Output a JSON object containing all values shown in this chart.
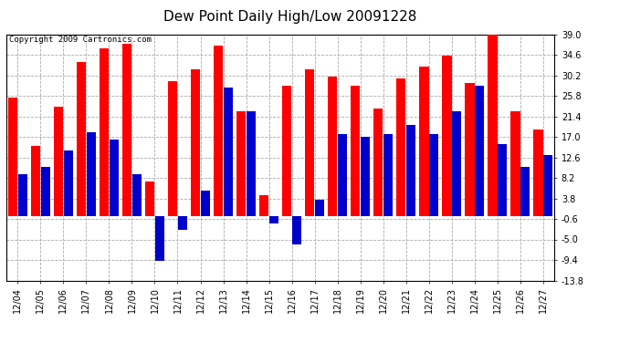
{
  "title": "Dew Point Daily High/Low 20091228",
  "copyright": "Copyright 2009 Cartronics.com",
  "dates": [
    "12/04",
    "12/05",
    "12/06",
    "12/07",
    "12/08",
    "12/09",
    "12/10",
    "12/11",
    "12/12",
    "12/13",
    "12/14",
    "12/15",
    "12/16",
    "12/17",
    "12/18",
    "12/19",
    "12/20",
    "12/21",
    "12/22",
    "12/23",
    "12/24",
    "12/25",
    "12/26",
    "12/27"
  ],
  "highs": [
    25.5,
    15.0,
    23.5,
    33.0,
    36.0,
    37.0,
    7.5,
    29.0,
    31.5,
    36.5,
    22.5,
    4.5,
    28.0,
    31.5,
    30.0,
    28.0,
    23.0,
    29.5,
    32.0,
    34.5,
    28.5,
    39.0,
    22.5,
    18.5
  ],
  "lows": [
    9.0,
    10.5,
    14.0,
    18.0,
    16.5,
    9.0,
    -9.5,
    -3.0,
    5.5,
    27.5,
    22.5,
    -1.5,
    -6.0,
    3.5,
    17.5,
    17.0,
    17.5,
    19.5,
    17.5,
    22.5,
    28.0,
    15.5,
    10.5,
    13.0
  ],
  "high_color": "#ff0000",
  "low_color": "#0000cc",
  "background_color": "#ffffff",
  "plot_bg_color": "#ffffff",
  "grid_color": "#aaaaaa",
  "yticks": [
    -13.8,
    -9.4,
    -5.0,
    -0.6,
    3.8,
    8.2,
    12.6,
    17.0,
    21.4,
    25.8,
    30.2,
    34.6,
    39.0
  ],
  "ylim": [
    -13.8,
    39.0
  ],
  "title_fontsize": 11,
  "tick_fontsize": 7,
  "copyright_fontsize": 6.5
}
